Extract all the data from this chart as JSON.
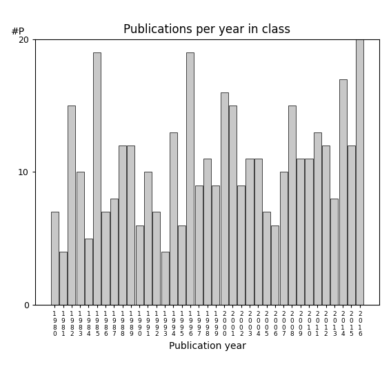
{
  "title": "Publications per year in class",
  "xlabel": "Publication year",
  "ylabel": "#P",
  "years": [
    1980,
    1981,
    1982,
    1983,
    1984,
    1985,
    1986,
    1987,
    1988,
    1989,
    1990,
    1991,
    1992,
    1993,
    1994,
    1995,
    1996,
    1997,
    1998,
    1999,
    2000,
    2001,
    2002,
    2003,
    2004,
    2005,
    2006,
    2007,
    2008,
    2009,
    2010,
    2011,
    2012,
    2013,
    2014,
    2015,
    2016
  ],
  "values": [
    7,
    4,
    15,
    10,
    5,
    19,
    7,
    8,
    12,
    12,
    6,
    10,
    7,
    4,
    13,
    6,
    19,
    9,
    11,
    9,
    16,
    15,
    9,
    11,
    11,
    7,
    6,
    10,
    15,
    11,
    11,
    13,
    12,
    8,
    17,
    12,
    20
  ],
  "bar_color": "#c8c8c8",
  "bar_edge_color": "#000000",
  "ylim": [
    0,
    20
  ],
  "yticks": [
    0,
    10,
    20
  ],
  "background_color": "#ffffff",
  "title_fontsize": 12,
  "axis_fontsize": 10,
  "tick_fontsize": 9,
  "xlabel_fontsize": 10
}
